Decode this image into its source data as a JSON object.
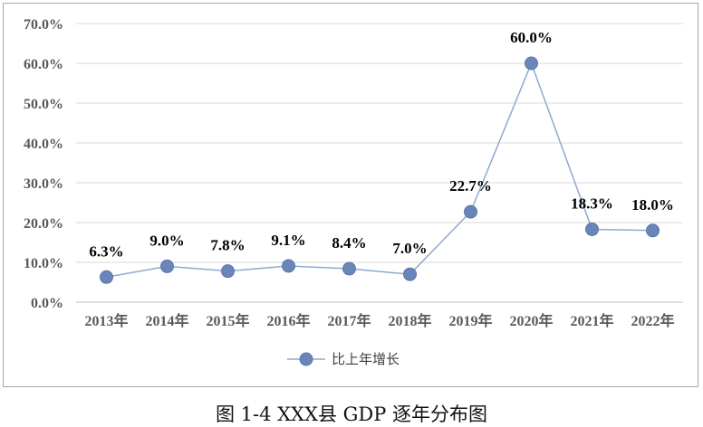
{
  "chart_data": {
    "type": "line",
    "categories": [
      "2013年",
      "2014年",
      "2015年",
      "2016年",
      "2017年",
      "2018年",
      "2019年",
      "2020年",
      "2021年",
      "2022年"
    ],
    "series": [
      {
        "name": "比上年增长",
        "values": [
          6.3,
          9.0,
          7.8,
          9.1,
          8.4,
          7.0,
          22.7,
          60.0,
          18.3,
          18.0
        ],
        "data_labels": [
          "6.3%",
          "9.0%",
          "7.8%",
          "9.1%",
          "8.4%",
          "7.0%",
          "22.7%",
          "60.0%",
          "18.3%",
          "18.0%"
        ],
        "line_color": "#8ea9cf",
        "marker_color": "#6a85b8"
      }
    ],
    "y_ticks": [
      "0.0%",
      "10.0%",
      "20.0%",
      "30.0%",
      "40.0%",
      "50.0%",
      "60.0%",
      "70.0%"
    ],
    "ylim": [
      0,
      70
    ],
    "grid": true,
    "legend_position": "bottom",
    "title": "",
    "xlabel": "",
    "ylabel": ""
  },
  "caption": "图 1-4 XXX县 GDP 逐年分布图",
  "colors": {
    "grid": "#d9d9d9",
    "axis_text": "#595959",
    "frame": "#a6a6a6"
  }
}
